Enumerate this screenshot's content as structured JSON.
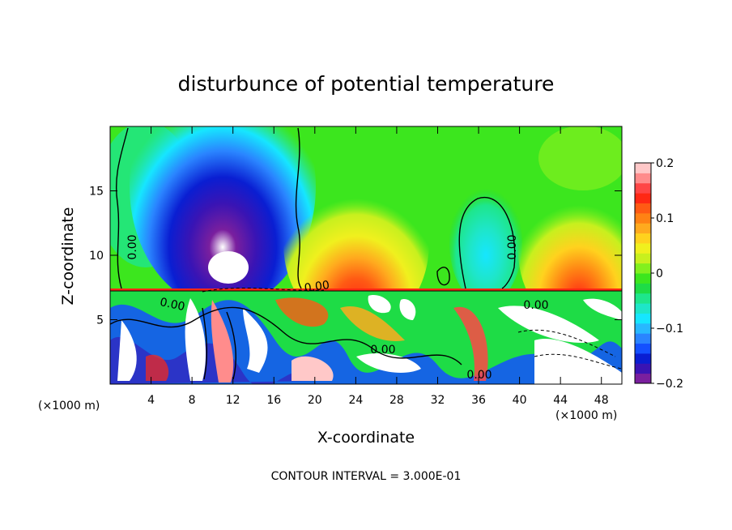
{
  "chart_data": {
    "type": "heatmap",
    "title": "disturbunce of potential temperature",
    "xlabel": "X-coordinate",
    "ylabel": "Z-coordinate",
    "x_unit_left": "(×1000 m)",
    "x_unit_right": "(×1000 m)",
    "x_ticks": [
      "4",
      "8",
      "12",
      "16",
      "20",
      "24",
      "28",
      "32",
      "36",
      "40",
      "44",
      "48"
    ],
    "y_ticks": [
      "5",
      "10",
      "15"
    ],
    "xlim": [
      0,
      50
    ],
    "ylim": [
      0,
      20
    ],
    "colorbar": {
      "ticks": [
        "0.2",
        "0.1",
        "0",
        "−0.1",
        "−0.2"
      ],
      "range": [
        -0.2,
        0.2
      ],
      "colors": [
        "#7a1f9e",
        "#3a14b4",
        "#0a1ed2",
        "#1450ff",
        "#2a84ff",
        "#28b8ff",
        "#16e6ff",
        "#1ee6c8",
        "#1ee68c",
        "#1edc46",
        "#3ce61e",
        "#82f01e",
        "#c8f01e",
        "#f0f01e",
        "#ffd21e",
        "#ffaa1e",
        "#ff8214",
        "#ff5a14",
        "#ff2814",
        "#ff4646",
        "#ff8c8c",
        "#ffc8c8"
      ]
    },
    "contour_labels": [
      "0.00",
      "0.00",
      "0.00",
      "0.00",
      "0.00",
      "0.00",
      "0.00"
    ],
    "footnote": "CONTOUR INTERVAL = 3.000E-01"
  }
}
